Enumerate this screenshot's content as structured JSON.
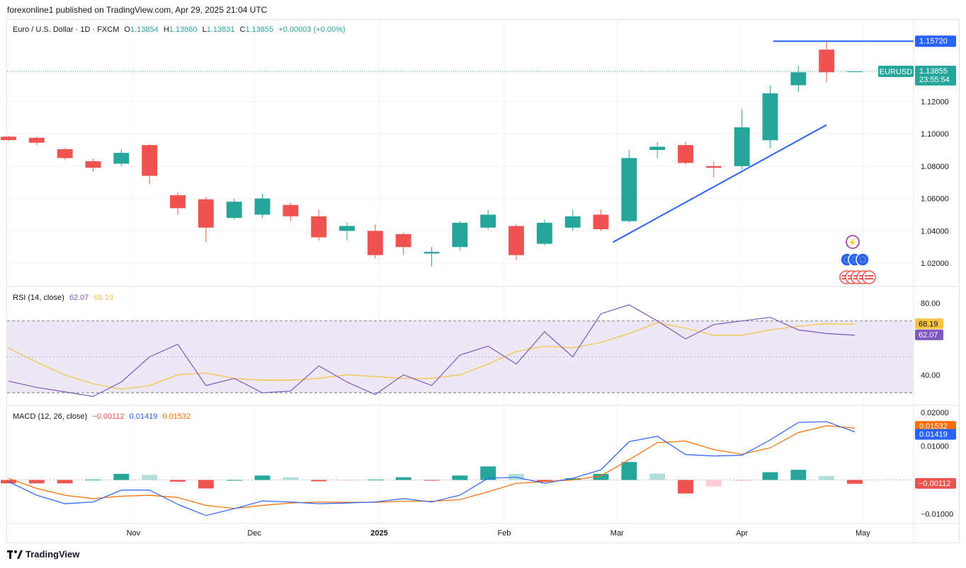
{
  "caption": "forexonline1 published on TradingView.com, Apr 29, 2025 21:04 UTC",
  "branding": "TradingView",
  "colors": {
    "up": "#26a69a",
    "down": "#ef5350",
    "rsi_line": "#7e57c2",
    "rsi_ma": "#f6c343",
    "rsi_band": "#ede7f6",
    "macd_line": "#2962ff",
    "signal_line": "#ff6d00",
    "trendline": "#2962ff",
    "price_tag": "#26a69a"
  },
  "main_legend": {
    "symbol": "Euro / U.S. Dollar · 1D · FXCM",
    "o_label": "O",
    "o": "1.13854",
    "h_label": "H",
    "h": "1.13860",
    "l_label": "L",
    "l": "1.13831",
    "c_label": "C",
    "c": "1.13855",
    "change": "+0.00003 (+0.00%)"
  },
  "rsi_legend": {
    "name": "RSI (14, close)",
    "rsi": "62.07",
    "ma": "68.19"
  },
  "macd_legend": {
    "name": "MACD (12, 26, close)",
    "hist": "−0.00112",
    "macd": "0.01419",
    "signal": "0.01532"
  },
  "price_axis": {
    "ticks": [
      "1.12000",
      "1.10000",
      "1.08000",
      "1.06000",
      "1.04000",
      "1.02000"
    ],
    "resistance_label": "1.15720",
    "symbol_tag": "EURUSD",
    "last_price": "1.13855",
    "countdown": "23:55:54"
  },
  "rsi_axis": {
    "ticks": [
      "80.00",
      "40.00"
    ],
    "ma_tag": "68.19",
    "rsi_tag": "62.07"
  },
  "macd_axis": {
    "ticks": [
      "0.02000",
      "0.01000",
      "−0.01000"
    ],
    "signal_tag": "0.01532",
    "macd_tag": "0.01419",
    "hist_tag": "−0.00112"
  },
  "time_axis": {
    "labels": [
      "Nov",
      "Dec",
      "2025",
      "Feb",
      "Mar",
      "Apr",
      "May"
    ]
  },
  "chart_data": {
    "type": "candlestick",
    "symbol": "EURUSD",
    "interval": "1D",
    "price_range": [
      1.01,
      1.163
    ],
    "candles": [
      {
        "date": "2024-10-01",
        "open": 1.0982,
        "high": 1.0988,
        "low": 1.0955,
        "close": 1.0961
      },
      {
        "date": "2024-10-08",
        "open": 1.0975,
        "high": 1.0982,
        "low": 1.093,
        "close": 1.0945
      },
      {
        "date": "2024-10-15",
        "open": 1.0905,
        "high": 1.0912,
        "low": 1.084,
        "close": 1.085
      },
      {
        "date": "2024-10-22",
        "open": 1.083,
        "high": 1.0845,
        "low": 1.0768,
        "close": 1.079
      },
      {
        "date": "2024-10-29",
        "open": 1.0815,
        "high": 1.0905,
        "low": 1.08,
        "close": 1.0882
      },
      {
        "date": "2024-11-05",
        "open": 1.093,
        "high": 1.0935,
        "low": 1.069,
        "close": 1.074
      },
      {
        "date": "2024-11-12",
        "open": 1.062,
        "high": 1.064,
        "low": 1.05,
        "close": 1.054
      },
      {
        "date": "2024-11-19",
        "open": 1.0595,
        "high": 1.061,
        "low": 1.033,
        "close": 1.042
      },
      {
        "date": "2024-11-26",
        "open": 1.048,
        "high": 1.06,
        "low": 1.047,
        "close": 1.058
      },
      {
        "date": "2024-12-03",
        "open": 1.05,
        "high": 1.063,
        "low": 1.048,
        "close": 1.06
      },
      {
        "date": "2024-12-10",
        "open": 1.056,
        "high": 1.0575,
        "low": 1.046,
        "close": 1.049
      },
      {
        "date": "2024-12-17",
        "open": 1.049,
        "high": 1.053,
        "low": 1.034,
        "close": 1.036
      },
      {
        "date": "2024-12-24",
        "open": 1.04,
        "high": 1.045,
        "low": 1.034,
        "close": 1.043
      },
      {
        "date": "2024-12-31",
        "open": 1.04,
        "high": 1.044,
        "low": 1.023,
        "close": 1.025
      },
      {
        "date": "2025-01-07",
        "open": 1.038,
        "high": 1.039,
        "low": 1.025,
        "close": 1.03
      },
      {
        "date": "2025-01-14",
        "open": 1.026,
        "high": 1.03,
        "low": 1.018,
        "close": 1.027
      },
      {
        "date": "2025-01-21",
        "open": 1.03,
        "high": 1.046,
        "low": 1.028,
        "close": 1.045
      },
      {
        "date": "2025-01-28",
        "open": 1.042,
        "high": 1.053,
        "low": 1.041,
        "close": 1.05
      },
      {
        "date": "2025-02-04",
        "open": 1.043,
        "high": 1.044,
        "low": 1.022,
        "close": 1.025
      },
      {
        "date": "2025-02-11",
        "open": 1.032,
        "high": 1.047,
        "low": 1.031,
        "close": 1.045
      },
      {
        "date": "2025-02-18",
        "open": 1.042,
        "high": 1.053,
        "low": 1.04,
        "close": 1.049
      },
      {
        "date": "2025-02-25",
        "open": 1.05,
        "high": 1.053,
        "low": 1.04,
        "close": 1.041
      },
      {
        "date": "2025-03-04",
        "open": 1.046,
        "high": 1.09,
        "low": 1.045,
        "close": 1.085
      },
      {
        "date": "2025-03-11",
        "open": 1.09,
        "high": 1.095,
        "low": 1.085,
        "close": 1.092
      },
      {
        "date": "2025-03-18",
        "open": 1.093,
        "high": 1.095,
        "low": 1.081,
        "close": 1.082
      },
      {
        "date": "2025-03-25",
        "open": 1.08,
        "high": 1.083,
        "low": 1.073,
        "close": 1.079
      },
      {
        "date": "2025-04-01",
        "open": 1.08,
        "high": 1.115,
        "low": 1.078,
        "close": 1.104
      },
      {
        "date": "2025-04-08",
        "open": 1.096,
        "high": 1.13,
        "low": 1.091,
        "close": 1.125
      },
      {
        "date": "2025-04-15",
        "open": 1.13,
        "high": 1.142,
        "low": 1.126,
        "close": 1.138
      },
      {
        "date": "2025-04-22",
        "open": 1.152,
        "high": 1.1572,
        "low": 1.132,
        "close": 1.138
      },
      {
        "date": "2025-04-29",
        "open": 1.1385,
        "high": 1.1386,
        "low": 1.1383,
        "close": 1.13855
      }
    ],
    "horizontal_line": 1.1572,
    "rising_trendline": [
      {
        "date": "2025-02-28",
        "price": 1.033
      },
      {
        "date": "2025-04-22",
        "price": 1.1055
      }
    ],
    "rsi": {
      "range": [
        25,
        88
      ],
      "band": [
        30,
        70
      ],
      "values": [
        36.5,
        33,
        30.5,
        28,
        36,
        50,
        57,
        34,
        38,
        30,
        31,
        45,
        36,
        29,
        40,
        34,
        51,
        56,
        46,
        64,
        50,
        74,
        79,
        70,
        60,
        68,
        70,
        72,
        65,
        63,
        62.07
      ],
      "ma": [
        55,
        47,
        40,
        35,
        32,
        34,
        40,
        41,
        38,
        37,
        37,
        38,
        40,
        39,
        38,
        38,
        40,
        46,
        53,
        56,
        55,
        58,
        63,
        69,
        66,
        62,
        62,
        65,
        67,
        68.5,
        68.19
      ]
    },
    "macd": {
      "range": [
        -0.012,
        0.021
      ],
      "macd": [
        -0.0005,
        -0.0045,
        -0.007,
        -0.0065,
        -0.003,
        -0.003,
        -0.0072,
        -0.0105,
        -0.0085,
        -0.0062,
        -0.0065,
        -0.007,
        -0.0068,
        -0.0065,
        -0.0055,
        -0.0065,
        -0.0045,
        0.0005,
        0.0008,
        -0.001,
        0.0005,
        0.003,
        0.0113,
        0.0129,
        0.0075,
        0.0071,
        0.0073,
        0.0118,
        0.017,
        0.0172,
        0.01419
      ],
      "signal": [
        0.0005,
        -0.0025,
        -0.0045,
        -0.0055,
        -0.0048,
        -0.0045,
        -0.0052,
        -0.0075,
        -0.0084,
        -0.0075,
        -0.0068,
        -0.0065,
        -0.0066,
        -0.0066,
        -0.0063,
        -0.0063,
        -0.0058,
        -0.0035,
        -0.001,
        -0.0005,
        0.0,
        0.0012,
        0.006,
        0.011,
        0.0115,
        0.009,
        0.0076,
        0.0095,
        0.014,
        0.016,
        0.01532
      ],
      "histogram": [
        -0.001,
        -0.001,
        -0.001,
        0.0001,
        0.0018,
        0.0015,
        -0.0005,
        -0.0025,
        0.0,
        0.0013,
        0.0008,
        -0.0004,
        -0.0002,
        0.0001,
        0.0008,
        -0.0002,
        0.0013,
        0.004,
        0.0018,
        -0.0005,
        0.0005,
        0.0018,
        0.0053,
        0.0019,
        -0.004,
        -0.0019,
        -0.0003,
        0.0023,
        0.003,
        0.0012,
        -0.00112
      ]
    }
  }
}
